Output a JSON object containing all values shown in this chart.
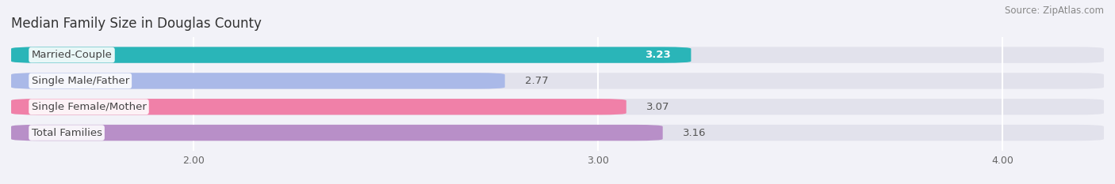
{
  "title": "Median Family Size in Douglas County",
  "source": "Source: ZipAtlas.com",
  "categories": [
    "Married-Couple",
    "Single Male/Father",
    "Single Female/Mother",
    "Total Families"
  ],
  "values": [
    3.23,
    2.77,
    3.07,
    3.16
  ],
  "bar_colors": [
    "#2ab5b8",
    "#aab9e8",
    "#f080a8",
    "#b88fc8"
  ],
  "xlim_min": 1.55,
  "xlim_max": 4.25,
  "xticks": [
    2.0,
    3.0,
    4.0
  ],
  "xtick_labels": [
    "2.00",
    "3.00",
    "4.00"
  ],
  "bar_height": 0.62,
  "background_color": "#f2f2f8",
  "bar_bg_color": "#e2e2ec",
  "title_fontsize": 12,
  "source_fontsize": 8.5,
  "label_fontsize": 9.5,
  "value_fontsize": 9.5,
  "grid_color": "#ffffff",
  "text_color": "#444444",
  "value_inside_color": "#ffffff",
  "value_outside_color": "#555555"
}
